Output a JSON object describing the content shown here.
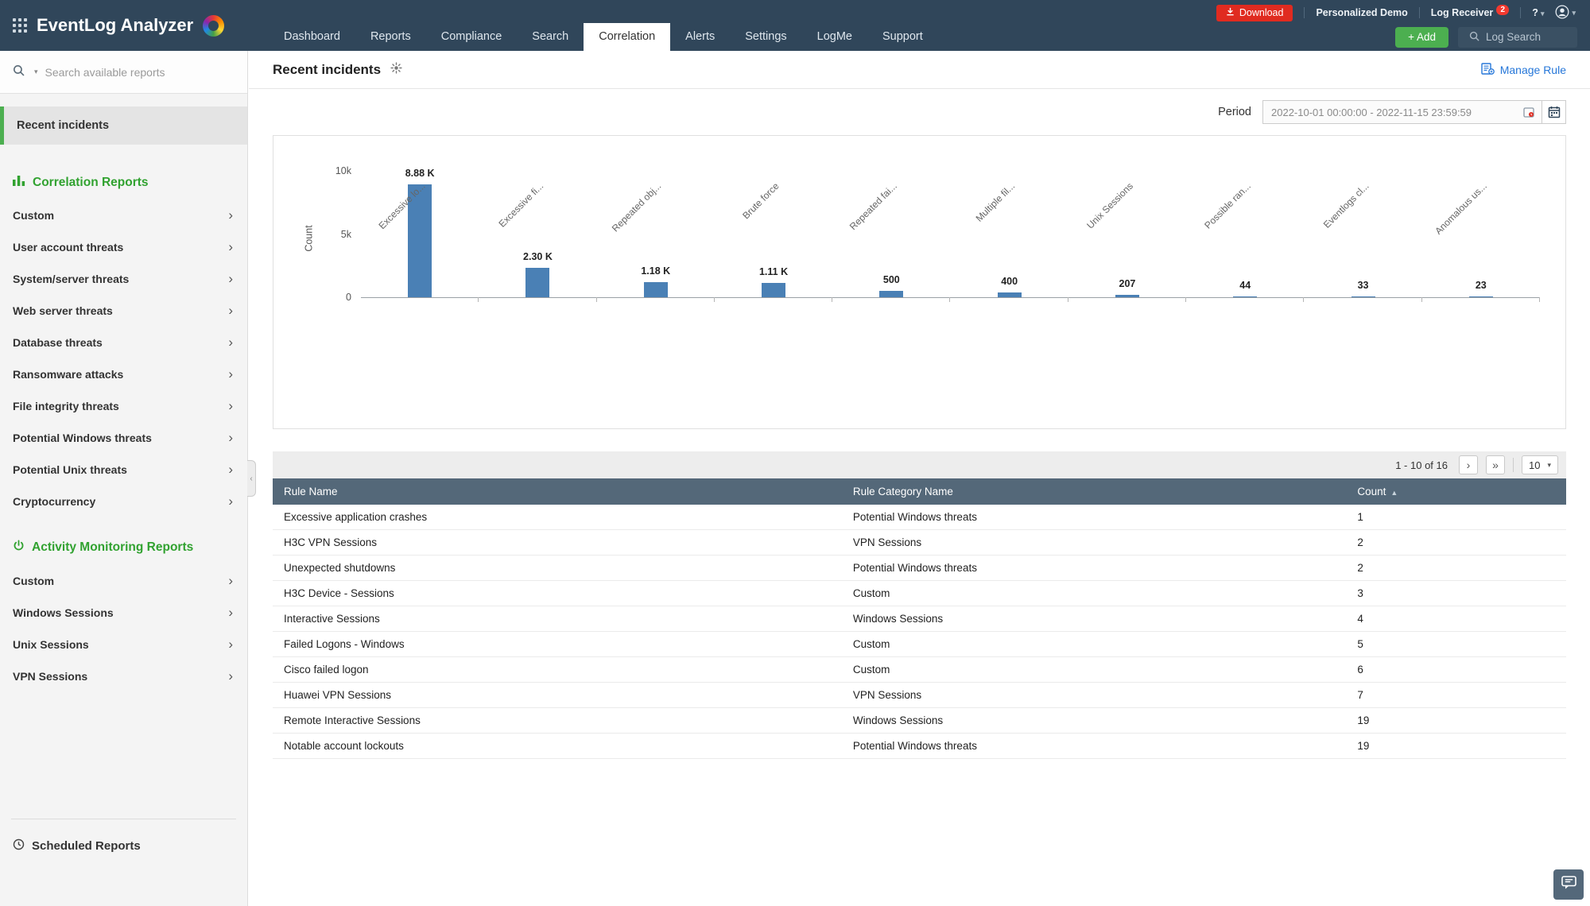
{
  "header": {
    "brand": "EventLog Analyzer",
    "tabs": [
      {
        "label": "Dashboard",
        "active": false
      },
      {
        "label": "Reports",
        "active": false
      },
      {
        "label": "Compliance",
        "active": false
      },
      {
        "label": "Search",
        "active": false
      },
      {
        "label": "Correlation",
        "active": true
      },
      {
        "label": "Alerts",
        "active": false
      },
      {
        "label": "Settings",
        "active": false
      },
      {
        "label": "LogMe",
        "active": false
      },
      {
        "label": "Support",
        "active": false
      }
    ],
    "download_label": "Download",
    "personalized_demo_label": "Personalized Demo",
    "log_receiver_label": "Log Receiver",
    "log_receiver_badge": "2",
    "help_label": "?",
    "add_label": "+ Add",
    "log_search_label": "Log Search"
  },
  "sidebar": {
    "search_placeholder": "Search available reports",
    "selected_item": "Recent incidents",
    "sections": [
      {
        "title": "Correlation Reports",
        "items": [
          "Custom",
          "User account threats",
          "System/server threats",
          "Web server threats",
          "Database threats",
          "Ransomware attacks",
          "File integrity threats",
          "Potential Windows threats",
          "Potential Unix threats",
          "Cryptocurrency"
        ]
      },
      {
        "title": "Activity Monitoring Reports",
        "items": [
          "Custom",
          "Windows Sessions",
          "Unix Sessions",
          "VPN Sessions"
        ]
      }
    ],
    "footer_item": "Scheduled Reports"
  },
  "main": {
    "title": "Recent incidents",
    "manage_rule_label": "Manage Rule",
    "period_label": "Period",
    "period_value": "2022-10-01 00:00:00 - 2022-11-15 23:59:59",
    "pagination": {
      "range": "1 - 10 of 16",
      "page_size": "10"
    },
    "table": {
      "columns": [
        "Rule Name",
        "Rule Category Name",
        "Count"
      ],
      "sort": {
        "column": "Count",
        "direction": "asc"
      },
      "rows": [
        [
          "Excessive application crashes",
          "Potential Windows threats",
          "1"
        ],
        [
          "H3C VPN Sessions",
          "VPN Sessions",
          "2"
        ],
        [
          "Unexpected shutdowns",
          "Potential Windows threats",
          "2"
        ],
        [
          "H3C Device - Sessions",
          "Custom",
          "3"
        ],
        [
          "Interactive Sessions",
          "Windows Sessions",
          "4"
        ],
        [
          "Failed Logons - Windows",
          "Custom",
          "5"
        ],
        [
          "Cisco failed logon",
          "Custom",
          "6"
        ],
        [
          "Huawei VPN Sessions",
          "VPN Sessions",
          "7"
        ],
        [
          "Remote Interactive Sessions",
          "Windows Sessions",
          "19"
        ],
        [
          "Notable account lockouts",
          "Potential Windows threats",
          "19"
        ]
      ]
    }
  },
  "chart_data": {
    "type": "bar",
    "categories": [
      "Excessive lo...",
      "Excessive fi...",
      "Repeated obj...",
      "Brute force",
      "Repeated fai...",
      "Multiple fil...",
      "Unix Sessions",
      "Possible ran...",
      "Eventlogs cl...",
      "Anomalous us..."
    ],
    "values": [
      8880,
      2300,
      1180,
      1110,
      500,
      400,
      207,
      44,
      33,
      23
    ],
    "value_labels": [
      "8.88 K",
      "2.30 K",
      "1.18 K",
      "1.11 K",
      "500",
      "400",
      "207",
      "44",
      "33",
      "23"
    ],
    "title": "",
    "xlabel": "",
    "ylabel": "Count",
    "ylim": [
      0,
      10000
    ],
    "yticks": [
      {
        "value": 10000,
        "label": "10k"
      },
      {
        "value": 5000,
        "label": "5k"
      },
      {
        "value": 0,
        "label": "0"
      }
    ],
    "grid": false,
    "legend": false,
    "bar_color": "#4a80b5"
  }
}
